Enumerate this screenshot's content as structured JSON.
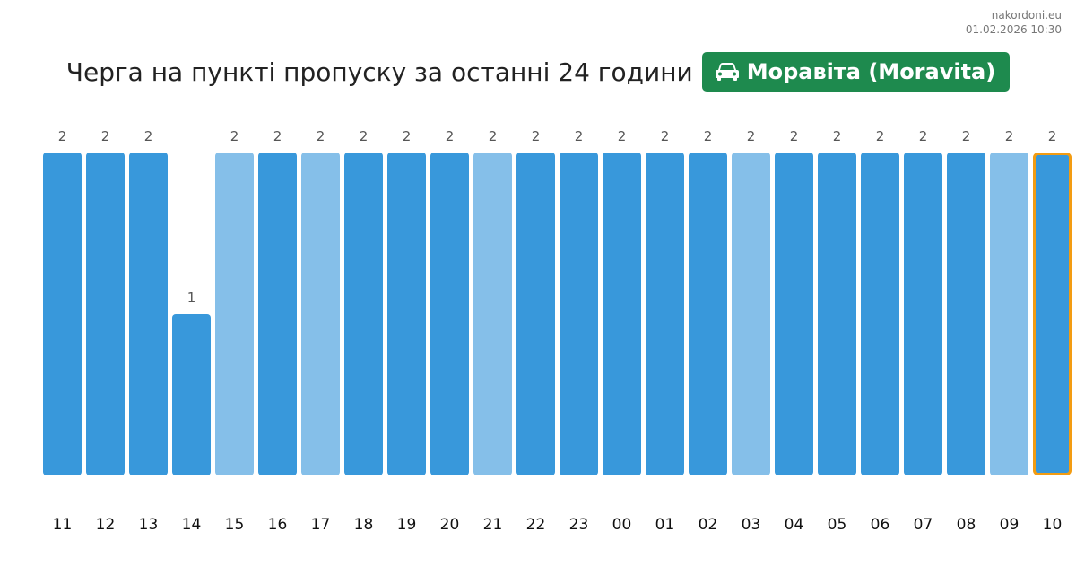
{
  "site": {
    "domain": "nakordoni.eu",
    "timestamp": "01.02.2026 10:30"
  },
  "header": {
    "title": "Черга на пункті пропуску за останні 24 години",
    "crossing": "Моравіта (Moravita)",
    "crossing_icon": "car-icon"
  },
  "colors": {
    "bar_dark": "#3898db",
    "bar_light": "#85bfe9",
    "current_outline": "#f39c12",
    "badge": "#1e8a4e"
  },
  "chart_data": {
    "type": "bar",
    "title": "Черга на пункті пропуску за останні 24 години",
    "categories": [
      "11",
      "12",
      "13",
      "14",
      "15",
      "16",
      "17",
      "18",
      "19",
      "20",
      "21",
      "22",
      "23",
      "00",
      "01",
      "02",
      "03",
      "04",
      "05",
      "06",
      "07",
      "08",
      "09",
      "10"
    ],
    "values": [
      2,
      2,
      2,
      1,
      2,
      2,
      2,
      2,
      2,
      2,
      2,
      2,
      2,
      2,
      2,
      2,
      2,
      2,
      2,
      2,
      2,
      2,
      2,
      2
    ],
    "shade": [
      "dark",
      "dark",
      "dark",
      "dark",
      "light",
      "dark",
      "light",
      "dark",
      "dark",
      "dark",
      "light",
      "dark",
      "dark",
      "dark",
      "dark",
      "dark",
      "light",
      "dark",
      "dark",
      "dark",
      "dark",
      "dark",
      "light",
      "dark"
    ],
    "highlighted_category": "10",
    "ylim": [
      0,
      2
    ],
    "grid": false,
    "legend": "none",
    "xlabel": "",
    "ylabel": ""
  }
}
